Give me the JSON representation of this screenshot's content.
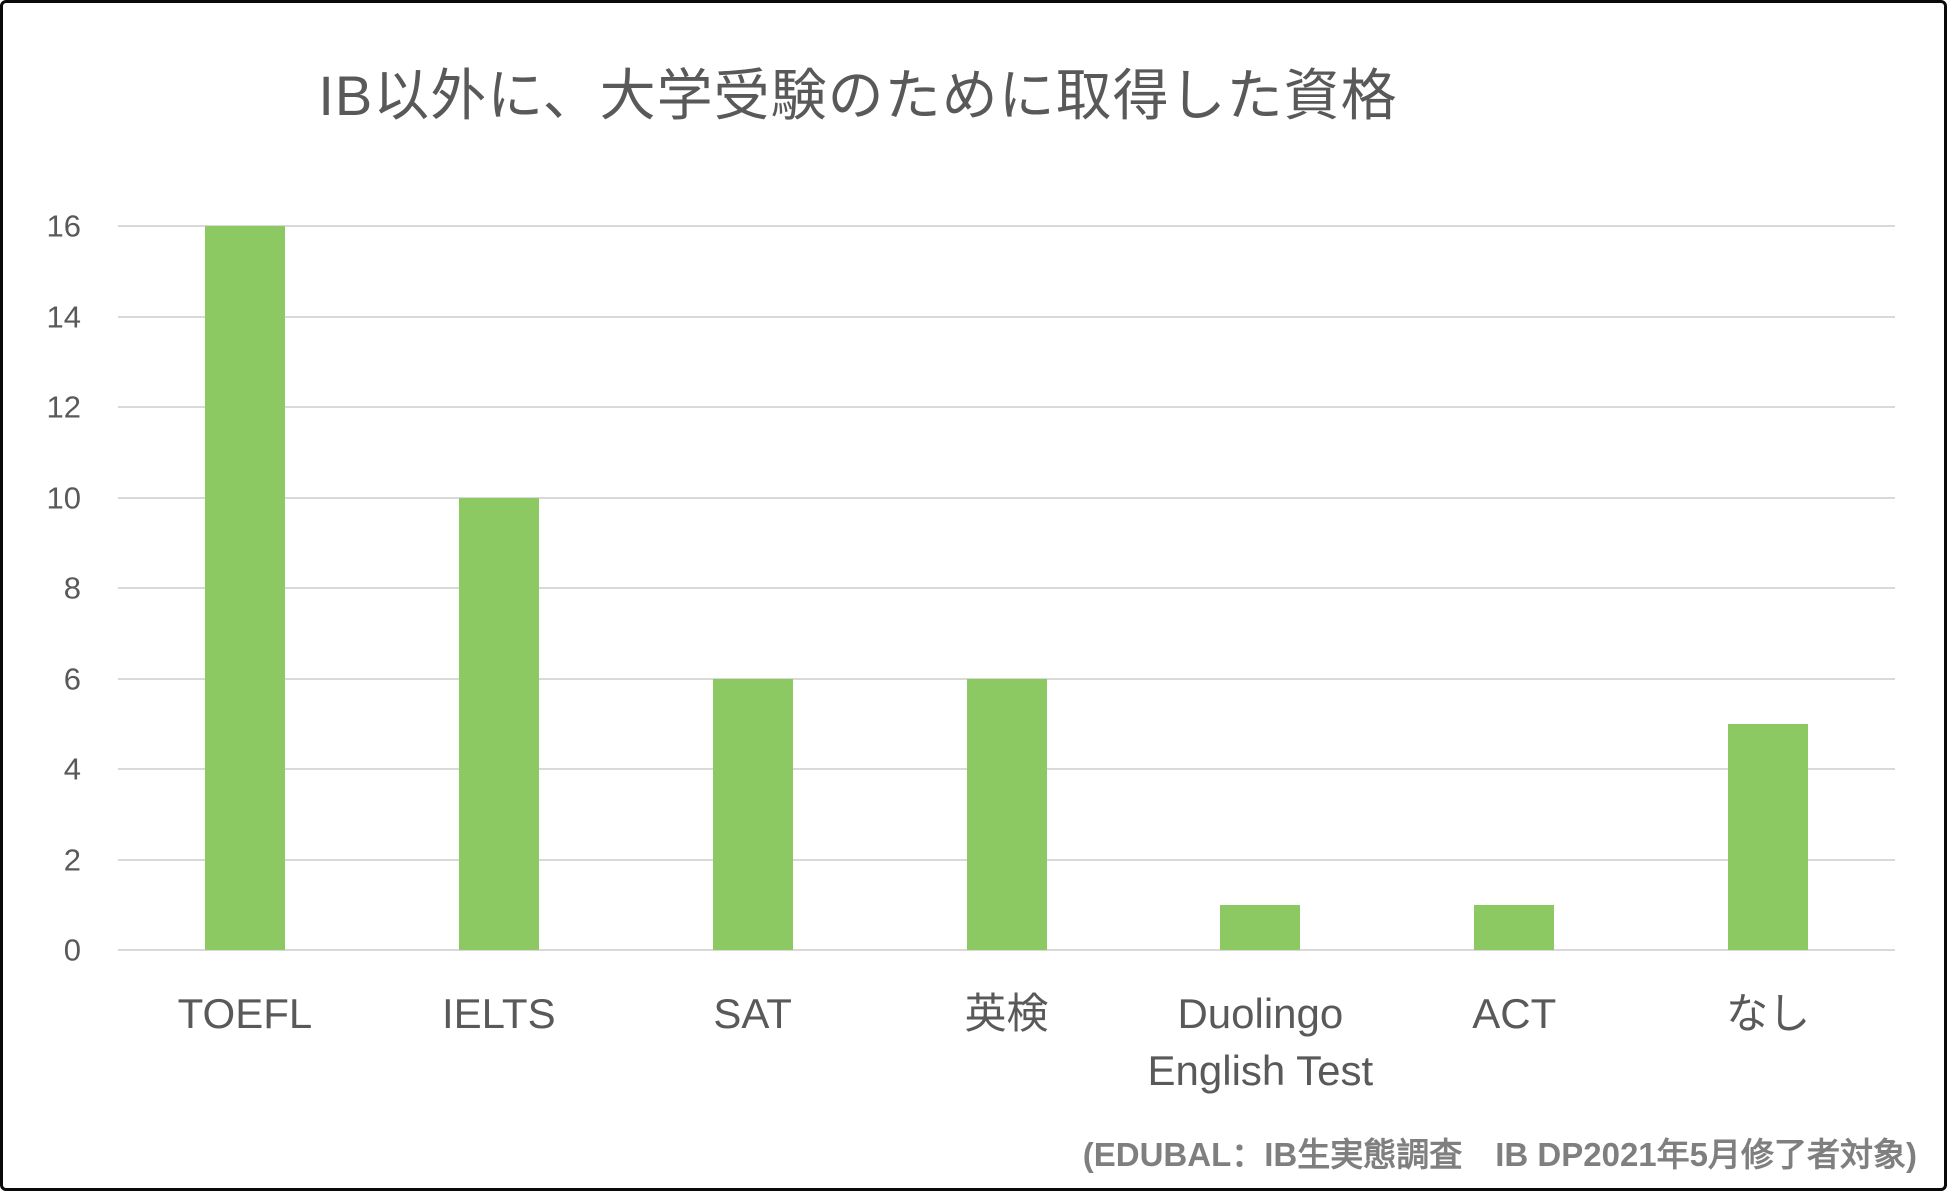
{
  "chart_data": {
    "type": "bar",
    "title": "IB以外に、大学受験のために取得した資格",
    "categories": [
      "TOEFL",
      "IELTS",
      "SAT",
      "英検",
      "Duolingo\nEnglish Test",
      "ACT",
      "なし"
    ],
    "values": [
      16,
      10,
      6,
      6,
      1,
      1,
      5
    ],
    "xlabel": "",
    "ylabel": "",
    "ylim": [
      0,
      16
    ],
    "yticks": [
      0,
      2,
      4,
      6,
      8,
      10,
      12,
      14,
      16
    ],
    "grid": "horizontal",
    "legend": "none",
    "bar_color": "#8DC963",
    "gridline_color": "#D9D9D9",
    "text_color": "#595959",
    "note_color": "#7F7F7F",
    "source_note": "(EDUBAL：IB生実態調査　IB DP2021年5月修了者対象)"
  }
}
